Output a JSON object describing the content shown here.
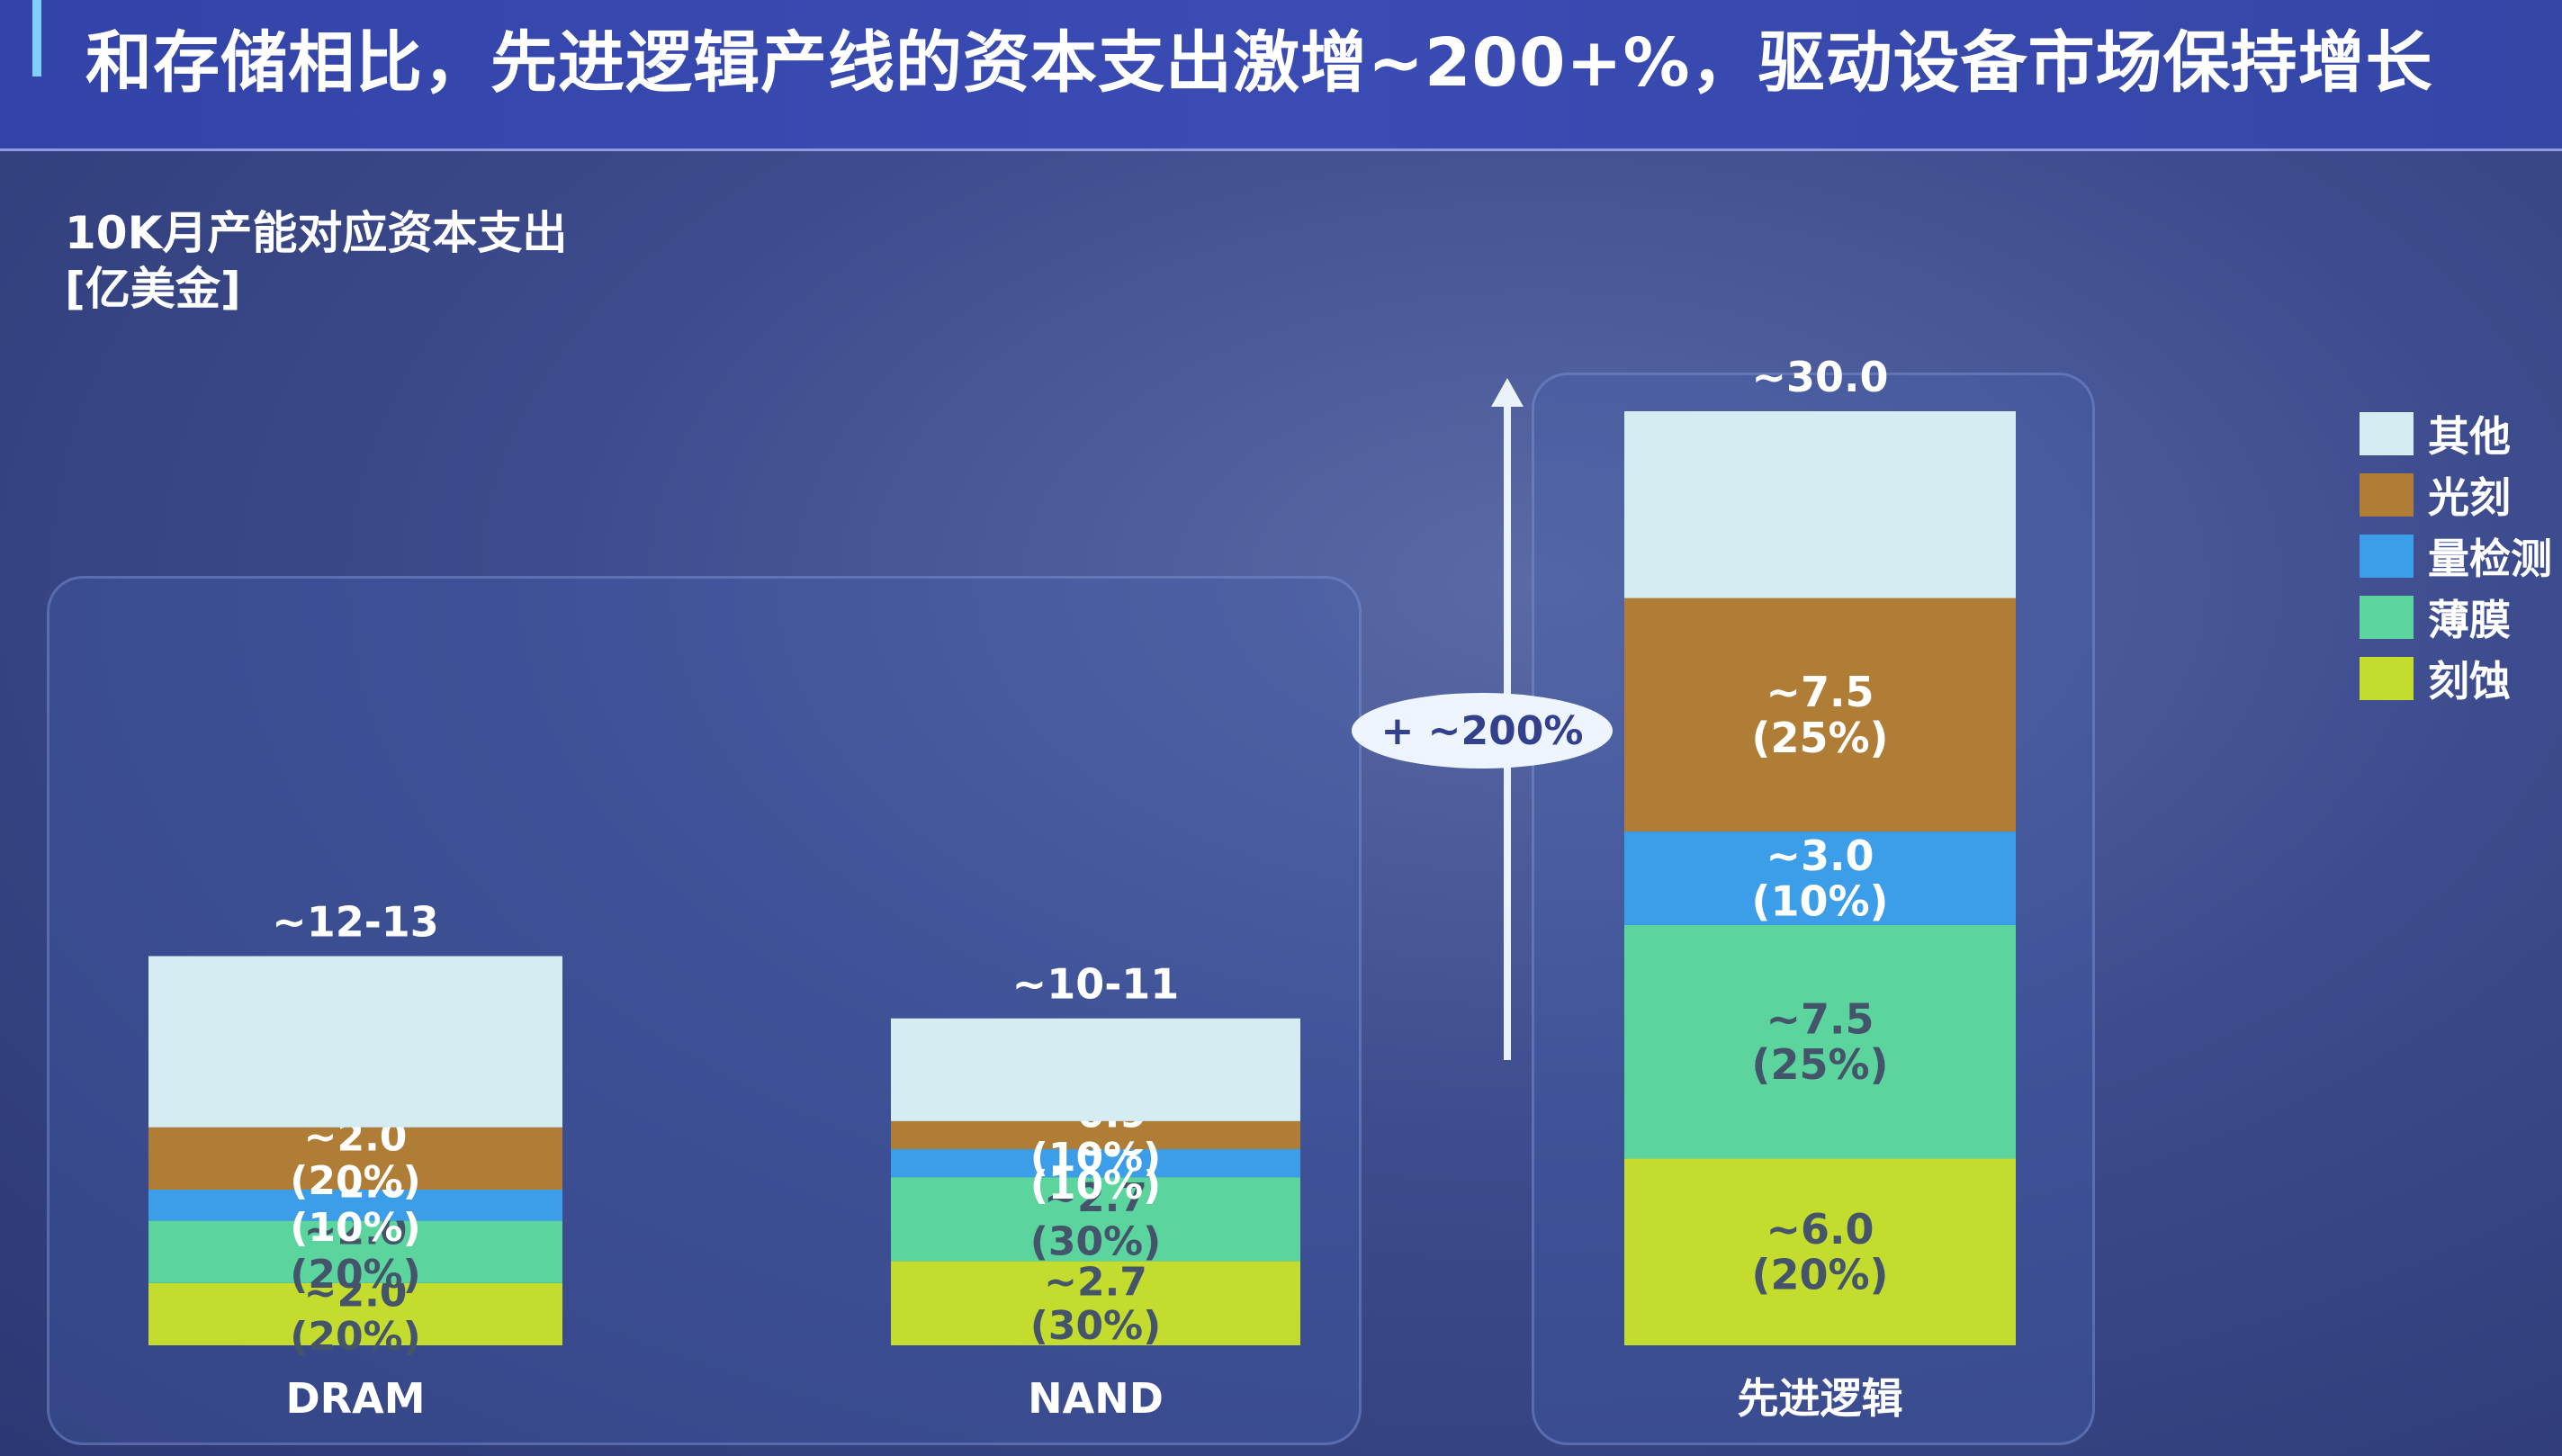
{
  "title": "和存储相比，先进逻辑产线的资本支出激增~200+%，驱动设备市场保持增长",
  "y_label_line1": "10K月产能对应资本支出",
  "y_label_line2": "[亿美金]",
  "growth_badge": "+ ~200%",
  "colors": {
    "其他": "#d4ecf2",
    "光刻": "#b07d37",
    "量检测": "#3c9de8",
    "薄膜": "#5bd49e",
    "刻蚀": "#c4dc2e"
  },
  "chart_data": {
    "type": "bar",
    "stacked": true,
    "categories": [
      "DRAM",
      "NAND",
      "先进逻辑"
    ],
    "totals": [
      "~12-13",
      "~10-11",
      "~30.0"
    ],
    "legend": [
      "其他",
      "光刻",
      "量检测",
      "薄膜",
      "刻蚀"
    ],
    "legend_position": "right",
    "series": [
      {
        "name": "刻蚀",
        "values": [
          2.0,
          2.7,
          6.0
        ],
        "labels": [
          "~2.0\n(20%)",
          "~2.7\n(30%)",
          "~6.0\n(20%)"
        ]
      },
      {
        "name": "薄膜",
        "values": [
          2.0,
          2.7,
          7.5
        ],
        "labels": [
          "~2.0\n(20%)",
          "~2.7\n(30%)",
          "~7.5\n(25%)"
        ]
      },
      {
        "name": "量检测",
        "values": [
          1.0,
          0.9,
          3.0
        ],
        "labels": [
          "~1.0\n(10%)",
          "~0.9\n(10%)",
          "~3.0\n(10%)"
        ]
      },
      {
        "name": "光刻",
        "values": [
          2.0,
          0.9,
          7.5
        ],
        "labels": [
          "~2.0\n(20%)",
          "~0.9\n(10%)",
          "~7.5\n(25%)"
        ]
      },
      {
        "name": "其他",
        "values": [
          5.5,
          3.3,
          6.0
        ],
        "labels": [
          "",
          "",
          ""
        ]
      }
    ],
    "ylim": [
      0,
      30
    ]
  }
}
